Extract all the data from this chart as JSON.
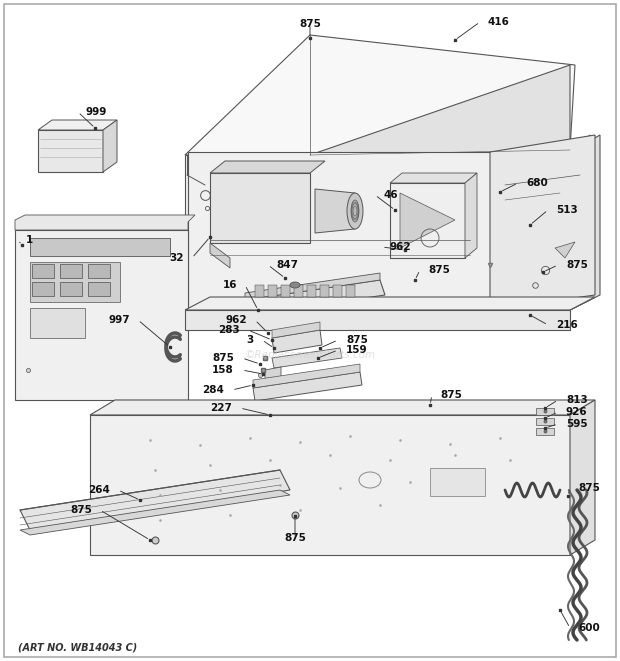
{
  "footer": "(ART NO. WB14043 C)",
  "watermark": "©ReplacementParts.com",
  "bg": "#ffffff",
  "lc": "#555555",
  "lc2": "#333333",
  "fig_w": 6.2,
  "fig_h": 6.61,
  "dpi": 100,
  "face_light": "#f5f5f5",
  "face_mid": "#ebebeb",
  "face_dark": "#d8d8d8",
  "face_white": "#fafafa"
}
